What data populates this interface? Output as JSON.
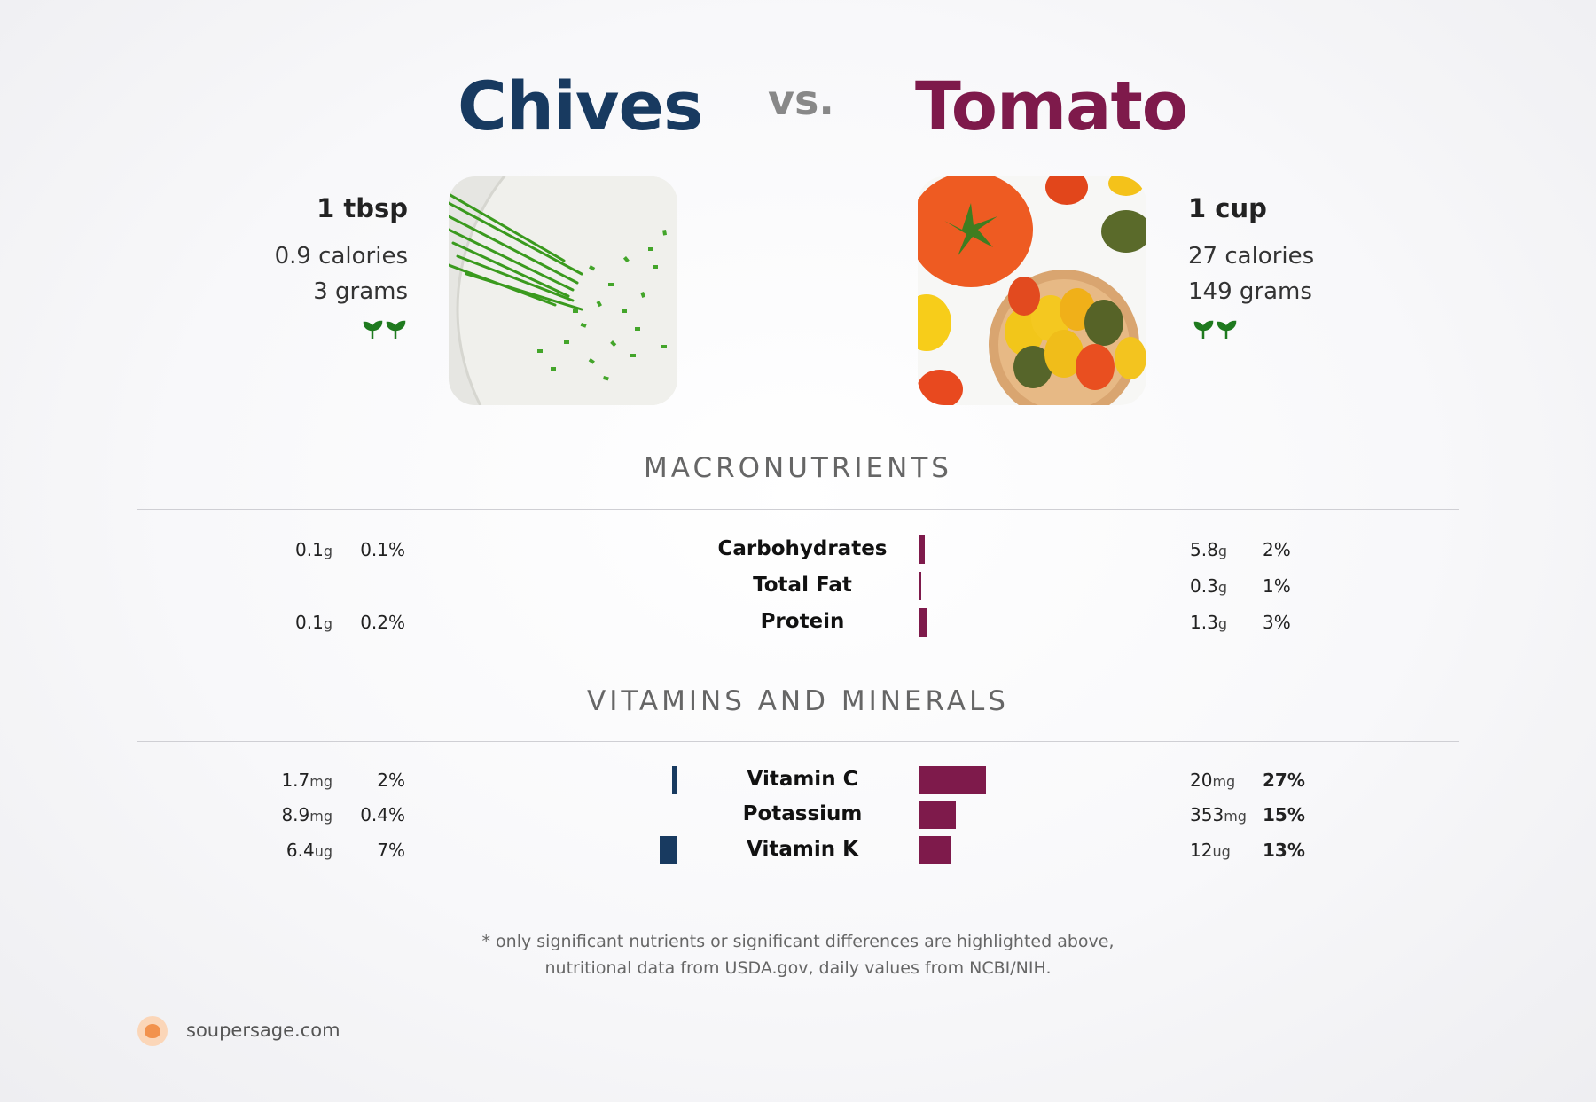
{
  "header": {
    "left_food": "Chives",
    "vs": "vs.",
    "right_food": "Tomato"
  },
  "left": {
    "serving": "1 tbsp",
    "calories": "0.9 calories",
    "grams": "3 grams",
    "icon": "sprout-icon",
    "color": "#183a60"
  },
  "right": {
    "serving": "1 cup",
    "calories": "27 calories",
    "grams": "149 grams",
    "icon": "sprout-icon",
    "color": "#7e1a4b"
  },
  "sections": {
    "macros_title": "MACRONUTRIENTS",
    "vitamins_title": "VITAMINS AND MINERALS"
  },
  "chart_data": [
    {
      "type": "bar",
      "title": "MACRONUTRIENTS",
      "categories": [
        "Carbohydrates",
        "Total Fat",
        "Protein"
      ],
      "series": [
        {
          "name": "Chives",
          "amounts": [
            "0.1",
            "",
            "0.1"
          ],
          "units": [
            "g",
            "",
            "g"
          ],
          "percents": [
            "0.1%",
            "",
            "0.2%"
          ],
          "values": [
            0.1,
            0,
            0.2
          ]
        },
        {
          "name": "Tomato",
          "amounts": [
            "5.8",
            "0.3",
            "1.3"
          ],
          "units": [
            "g",
            "g",
            "g"
          ],
          "percents": [
            "2%",
            "1%",
            "3%"
          ],
          "values": [
            2,
            1,
            3
          ]
        }
      ]
    },
    {
      "type": "bar",
      "title": "VITAMINS AND MINERALS",
      "categories": [
        "Vitamin C",
        "Potassium",
        "Vitamin K"
      ],
      "series": [
        {
          "name": "Chives",
          "amounts": [
            "1.7",
            "8.9",
            "6.4"
          ],
          "units": [
            "mg",
            "mg",
            "ug"
          ],
          "percents": [
            "2%",
            "0.4%",
            "7%"
          ],
          "values": [
            2,
            0.4,
            7
          ]
        },
        {
          "name": "Tomato",
          "amounts": [
            "20",
            "353",
            "12"
          ],
          "units": [
            "mg",
            "mg",
            "ug"
          ],
          "percents": [
            "27%",
            "15%",
            "13%"
          ],
          "values": [
            27,
            15,
            13
          ]
        }
      ]
    }
  ],
  "footer": {
    "note_line1": "* only significant nutrients or significant differences are highlighted above,",
    "note_line2": "nutritional data from USDA.gov, daily values from NCBI/NIH.",
    "brand": "soupersage.com"
  }
}
